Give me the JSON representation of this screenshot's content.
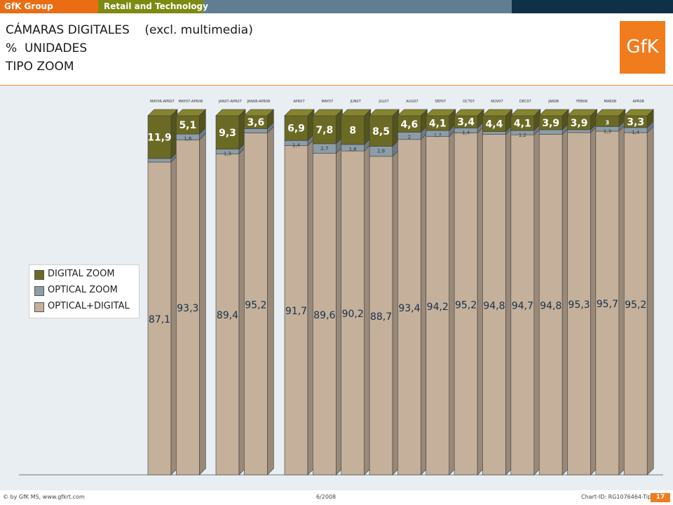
{
  "header": {
    "brand": "GfK Group",
    "section": "Retail and Technology",
    "colors": {
      "brand_bar": "#ea6d14",
      "section_bar": "#7c8a12",
      "mid_bar": "#5f7f91",
      "dark_bar": "#0f3147"
    }
  },
  "titles": {
    "line1_main": "CÁMARAS DIGITALES",
    "line1_note": "(excl. multimedia)",
    "line2": "%  UNIDADES",
    "line3": "TIPO ZOOM"
  },
  "logo": {
    "text": "GfK",
    "color": "#f07c1e"
  },
  "legend": {
    "items": [
      {
        "label": "DIGITAL ZOOM",
        "color": "#6b6a25"
      },
      {
        "label": "OPTICAL ZOOM",
        "color": "#8d9da6"
      },
      {
        "label": "OPTICAL+DIGITAL",
        "color": "#c4b09b"
      }
    ]
  },
  "footer": {
    "left": "© by GfK MS, www.gfkrt.com",
    "middle": "6/2008",
    "right": "Chart-ID: RG1076464-Tip",
    "page": "17"
  },
  "chart_data": {
    "type": "bar",
    "stacked": true,
    "ylim": [
      0,
      100
    ],
    "categories": [
      "MAY06-APR07",
      "MAY07-APR08",
      "JAN07-APR07",
      "JAN08-APR08",
      "APR07",
      "MAY07",
      "JUN07",
      "JUL07",
      "AUG07",
      "SEP07",
      "OCT07",
      "NOV07",
      "DEC07",
      "JAN08",
      "FEB08",
      "MAR08",
      "APR08"
    ],
    "groups": [
      2,
      2,
      13
    ],
    "series": [
      {
        "name": "OPTICAL+DIGITAL",
        "color": "#c4b09b",
        "values": [
          87.1,
          93.3,
          89.4,
          95.2,
          91.7,
          89.6,
          90.2,
          88.7,
          93.4,
          94.2,
          95.2,
          94.8,
          94.7,
          94.8,
          95.3,
          95.7,
          95.2
        ]
      },
      {
        "name": "OPTICAL ZOOM",
        "color": "#8d9da6",
        "values": [
          1.0,
          1.6,
          1.3,
          1.2,
          1.4,
          2.7,
          1.8,
          2.8,
          2.0,
          1.7,
          1.4,
          0.8,
          1.2,
          1.3,
          0.8,
          1.3,
          1.4
        ]
      },
      {
        "name": "DIGITAL ZOOM",
        "color": "#6b6a25",
        "values": [
          11.9,
          5.1,
          9.3,
          3.6,
          6.9,
          7.8,
          8.0,
          8.5,
          4.6,
          4.1,
          3.4,
          4.4,
          4.1,
          3.9,
          3.9,
          3.0,
          3.3
        ]
      }
    ],
    "labels": {
      "optical_digital": [
        "87,1",
        "93,3",
        "89,4",
        "95,2",
        "91,7",
        "89,6",
        "90,2",
        "88,7",
        "93,4",
        "94,2",
        "95,2",
        "94,8",
        "94,7",
        "94,8",
        "95,3",
        "95,7",
        "95,2"
      ],
      "optical": [
        "",
        "1,6",
        "1,3",
        "",
        "1,4",
        "2,7",
        "1,8",
        "2,8",
        "2",
        "1,7",
        "1,4",
        "",
        "1,2",
        "",
        "",
        "1,3",
        "1,4"
      ],
      "digital": [
        "11,9",
        "5,1",
        "9,3",
        "3,6",
        "6,9",
        "7,8",
        "8",
        "8,5",
        "4,6",
        "4,1",
        "3,4",
        "4,4",
        "4,1",
        "3,9",
        "3,9",
        "3",
        "3,3"
      ]
    }
  }
}
